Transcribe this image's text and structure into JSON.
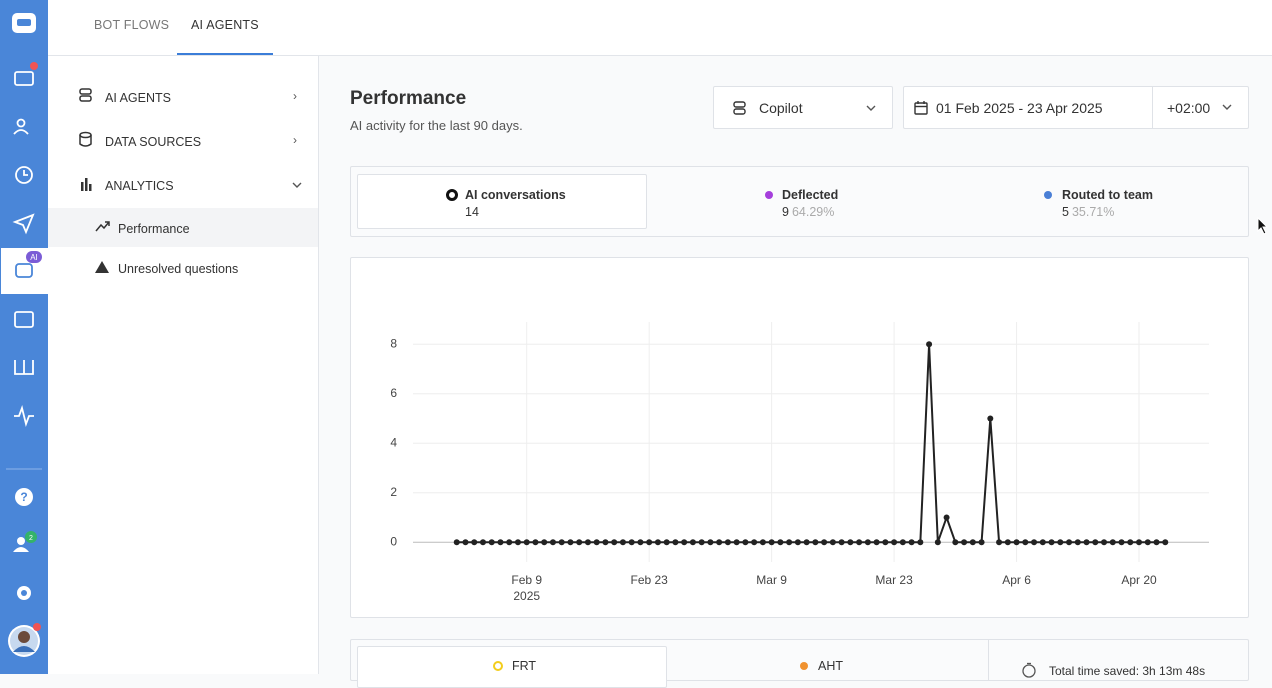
{
  "tabs": [
    "BOT FLOWS",
    "AI AGENTS"
  ],
  "icon_bar": {
    "ai_badge": "AI",
    "team_badge": "2"
  },
  "menu": [
    "AI AGENTS",
    "DATA SOURCES",
    "ANALYTICS"
  ],
  "sub_menu": [
    "Performance",
    "Unresolved questions"
  ],
  "header": {
    "title": "Performance",
    "subtitle": "AI activity for the last 90 days.",
    "bot_select": "Copilot",
    "date_range": "01 Feb 2025 - 23 Apr 2025",
    "timezone": "+02:00"
  },
  "stats": [
    {
      "label": "AI conversations",
      "value": 14
    },
    {
      "label": "Deflected",
      "value": 9,
      "percent": "64.29%"
    },
    {
      "label": "Routed to team",
      "value": 5,
      "percent": "35.71%"
    }
  ],
  "chart_data": {
    "type": "line",
    "color": "#222222",
    "x": [
      "2025-02-01",
      "2025-02-02",
      "2025-02-03",
      "2025-02-04",
      "2025-02-05",
      "2025-02-06",
      "2025-02-07",
      "2025-02-08",
      "2025-02-09",
      "2025-02-10",
      "2025-02-11",
      "2025-02-12",
      "2025-02-13",
      "2025-02-14",
      "2025-02-15",
      "2025-02-16",
      "2025-02-17",
      "2025-02-18",
      "2025-02-19",
      "2025-02-20",
      "2025-02-21",
      "2025-02-22",
      "2025-02-23",
      "2025-02-24",
      "2025-02-25",
      "2025-02-26",
      "2025-02-27",
      "2025-02-28",
      "2025-03-01",
      "2025-03-02",
      "2025-03-03",
      "2025-03-04",
      "2025-03-05",
      "2025-03-06",
      "2025-03-07",
      "2025-03-08",
      "2025-03-09",
      "2025-03-10",
      "2025-03-11",
      "2025-03-12",
      "2025-03-13",
      "2025-03-14",
      "2025-03-15",
      "2025-03-16",
      "2025-03-17",
      "2025-03-18",
      "2025-03-19",
      "2025-03-20",
      "2025-03-21",
      "2025-03-22",
      "2025-03-23",
      "2025-03-24",
      "2025-03-25",
      "2025-03-26",
      "2025-03-27",
      "2025-03-28",
      "2025-03-29",
      "2025-03-30",
      "2025-03-31",
      "2025-04-01",
      "2025-04-02",
      "2025-04-03",
      "2025-04-04",
      "2025-04-05",
      "2025-04-06",
      "2025-04-07",
      "2025-04-08",
      "2025-04-09",
      "2025-04-10",
      "2025-04-11",
      "2025-04-12",
      "2025-04-13",
      "2025-04-14",
      "2025-04-15",
      "2025-04-16",
      "2025-04-17",
      "2025-04-18",
      "2025-04-19",
      "2025-04-20",
      "2025-04-21",
      "2025-04-22",
      "2025-04-23"
    ],
    "values": [
      0,
      0,
      0,
      0,
      0,
      0,
      0,
      0,
      0,
      0,
      0,
      0,
      0,
      0,
      0,
      0,
      0,
      0,
      0,
      0,
      0,
      0,
      0,
      0,
      0,
      0,
      0,
      0,
      0,
      0,
      0,
      0,
      0,
      0,
      0,
      0,
      0,
      0,
      0,
      0,
      0,
      0,
      0,
      0,
      0,
      0,
      0,
      0,
      0,
      0,
      0,
      0,
      0,
      0,
      8,
      0,
      1,
      0,
      0,
      0,
      0,
      5,
      0,
      0,
      0,
      0,
      0,
      0,
      0,
      0,
      0,
      0,
      0,
      0,
      0,
      0,
      0,
      0,
      0,
      0,
      0,
      0
    ],
    "xlim": [
      "2025-01-27",
      "2025-04-28"
    ],
    "xticks": [
      {
        "value": "2025-02-09",
        "label": "Feb 9"
      },
      {
        "value": "2025-02-23",
        "label": "Feb 23"
      },
      {
        "value": "2025-03-09",
        "label": "Mar 9"
      },
      {
        "value": "2025-03-23",
        "label": "Mar 23"
      },
      {
        "value": "2025-04-06",
        "label": "Apr 6"
      },
      {
        "value": "2025-04-20",
        "label": "Apr 20"
      }
    ],
    "xtick_year": "2025",
    "ylim": [
      -0.8,
      8.9
    ],
    "yticks": [
      0,
      2,
      4,
      6,
      8
    ],
    "grid": true
  },
  "metrics": {
    "frt": "FRT",
    "aht": "AHT",
    "time_saved": "Total time saved: 3h 13m 48s"
  }
}
